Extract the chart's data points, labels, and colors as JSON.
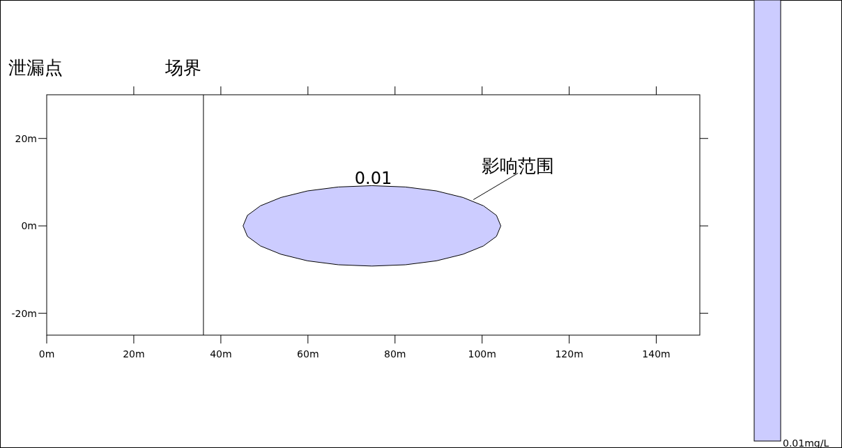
{
  "chart_data": {
    "type": "area",
    "xlim": [
      0,
      150
    ],
    "ylim": [
      -25,
      30
    ],
    "xticks": [
      {
        "value": 0,
        "label": "0m"
      },
      {
        "value": 20,
        "label": "20m"
      },
      {
        "value": 40,
        "label": "40m"
      },
      {
        "value": 60,
        "label": "60m"
      },
      {
        "value": 80,
        "label": "80m"
      },
      {
        "value": 100,
        "label": "100m"
      },
      {
        "value": 120,
        "label": "120m"
      },
      {
        "value": 140,
        "label": "140m"
      }
    ],
    "yticks": [
      {
        "value": -20,
        "label": "-20m"
      },
      {
        "value": 0,
        "label": "0m"
      },
      {
        "value": 20,
        "label": "20m"
      }
    ],
    "series": [
      {
        "color": "#ccccff",
        "x": [
          104.3,
          103.3,
          100.3,
          95.6,
          89.5,
          82.4,
          74.7,
          67.0,
          59.9,
          53.8,
          49.1,
          46.1,
          45.1,
          46.1,
          49.1,
          53.8,
          59.9,
          67.0,
          74.7,
          82.4,
          89.5,
          95.6,
          100.3,
          103.3,
          104.3
        ],
        "values": [
          0,
          2.4,
          4.6,
          6.5,
          8.0,
          8.9,
          9.2,
          8.9,
          8.0,
          6.5,
          4.6,
          2.4,
          0,
          -2.4,
          -4.6,
          -6.5,
          -8.0,
          -8.9,
          -9.2,
          -8.9,
          -8.0,
          -6.5,
          -4.6,
          -2.4,
          0
        ]
      }
    ],
    "ref_lines": [
      {
        "axis": "x",
        "value": 36,
        "label": "场界"
      }
    ],
    "annotations": [
      "泄漏点",
      {
        "text": "0.01",
        "x": 75,
        "y": 9.2
      },
      {
        "text": "影响范围",
        "x": 98,
        "y": 6
      }
    ],
    "clabel": "0.01mg/L"
  }
}
